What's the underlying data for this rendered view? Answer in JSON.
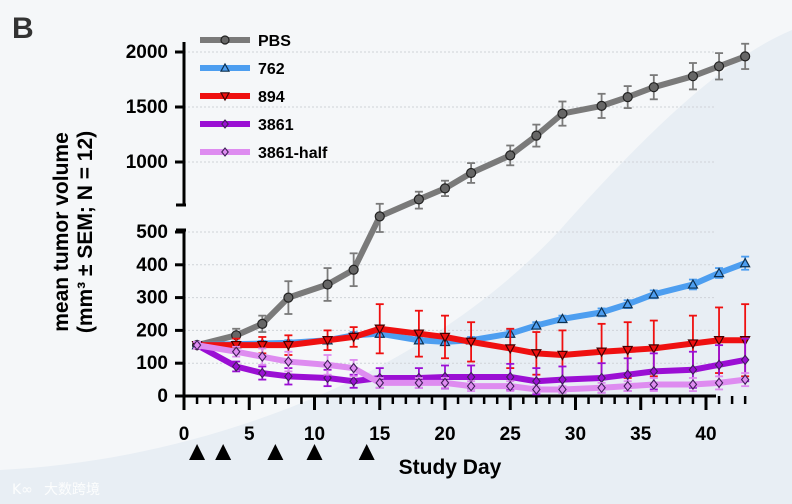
{
  "panel_label": "B",
  "watermark": "大数跨境",
  "chart_data": {
    "type": "line",
    "title": "",
    "xlabel": "Study Day",
    "ylabel_line1": "mean tumor volume",
    "ylabel_line2": "(mm³ ± SEM; N = 12)",
    "xlim": [
      0,
      43
    ],
    "x_ticks": [
      0,
      5,
      10,
      15,
      20,
      25,
      30,
      35,
      40
    ],
    "y_break": [
      500,
      600
    ],
    "y_ticks_lower": [
      0,
      100,
      200,
      300,
      400,
      500
    ],
    "y_ticks_upper": [
      1000,
      1500,
      2000
    ],
    "grid": true,
    "legend_position": "top-left",
    "dosing_days": [
      1,
      3,
      7,
      10,
      14
    ],
    "x": [
      1,
      4,
      6,
      8,
      11,
      13,
      15,
      18,
      20,
      22,
      25,
      27,
      29,
      32,
      34,
      36,
      39,
      41,
      43
    ],
    "series": [
      {
        "name": "PBS",
        "color": "#7a7a7a",
        "marker": "circle",
        "values": [
          155,
          185,
          220,
          300,
          340,
          385,
          560,
          660,
          760,
          900,
          1060,
          1240,
          1440,
          1510,
          1590,
          1680,
          1780,
          1870,
          1960
        ],
        "sem": [
          10,
          20,
          25,
          50,
          50,
          50,
          60,
          70,
          70,
          90,
          90,
          100,
          110,
          110,
          100,
          110,
          120,
          120,
          115
        ]
      },
      {
        "name": "762",
        "color": "#4d9ef0",
        "marker": "triangle-up",
        "values": [
          155,
          158,
          160,
          162,
          170,
          185,
          190,
          170,
          165,
          170,
          190,
          215,
          235,
          255,
          280,
          310,
          340,
          375,
          405
        ],
        "sem": [
          10,
          8,
          8,
          8,
          10,
          10,
          10,
          10,
          10,
          10,
          10,
          10,
          10,
          12,
          12,
          12,
          15,
          15,
          20
        ]
      },
      {
        "name": "894",
        "color": "#ef1010",
        "marker": "triangle-down",
        "values": [
          155,
          155,
          155,
          155,
          170,
          180,
          205,
          190,
          180,
          165,
          145,
          130,
          125,
          135,
          140,
          145,
          160,
          170,
          170
        ],
        "sem": [
          10,
          20,
          25,
          30,
          30,
          30,
          75,
          70,
          65,
          60,
          60,
          65,
          75,
          85,
          85,
          85,
          85,
          100,
          110
        ]
      },
      {
        "name": "3861",
        "color": "#9b0fd4",
        "marker": "diamond",
        "values": [
          155,
          90,
          70,
          60,
          55,
          45,
          55,
          55,
          58,
          58,
          58,
          45,
          50,
          55,
          65,
          75,
          80,
          95,
          110
        ],
        "sem": [
          10,
          15,
          20,
          25,
          25,
          20,
          30,
          30,
          35,
          35,
          40,
          40,
          40,
          45,
          50,
          55,
          55,
          60,
          65
        ]
      },
      {
        "name": "3861-half",
        "color": "#de8cf0",
        "marker": "diamond",
        "values": [
          155,
          135,
          120,
          105,
          95,
          85,
          40,
          40,
          40,
          30,
          30,
          20,
          20,
          25,
          30,
          35,
          35,
          40,
          50
        ],
        "sem": [
          10,
          15,
          25,
          30,
          30,
          25,
          15,
          15,
          15,
          15,
          15,
          10,
          10,
          15,
          15,
          20,
          20,
          20,
          20
        ]
      }
    ]
  }
}
